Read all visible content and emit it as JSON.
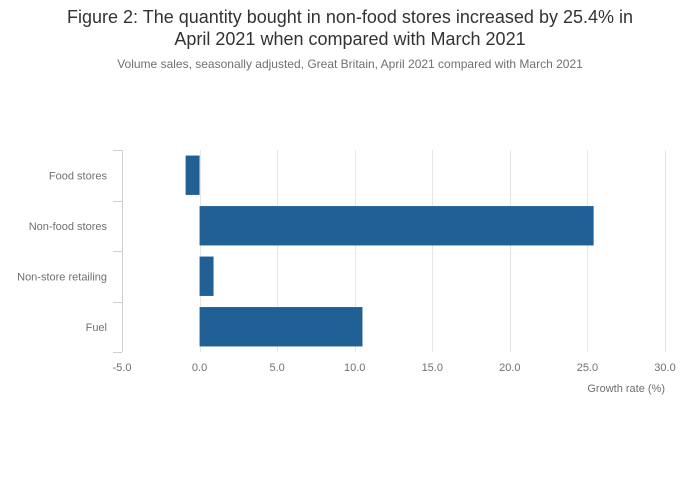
{
  "chart_data": {
    "type": "bar",
    "orientation": "horizontal",
    "title_lines": [
      "Figure 2: The quantity bought in non-food stores increased by 25.4% in",
      "April 2021 when compared with March 2021"
    ],
    "subtitle": "Volume sales, seasonally adjusted, Great Britain, April 2021 compared with March 2021",
    "categories": [
      "Food stores",
      "Non-food stores",
      "Non-store retailing",
      "Fuel"
    ],
    "values": [
      -0.9,
      25.4,
      0.9,
      10.5
    ],
    "xlabel": "Growth rate (%)",
    "ylabel": "",
    "xlim": [
      -5,
      30
    ],
    "xticks": [
      "-5.0",
      "0.0",
      "5.0",
      "10.0",
      "15.0",
      "20.0",
      "25.0",
      "30.0"
    ],
    "xtick_values": [
      -5,
      0,
      5,
      10,
      15,
      20,
      25,
      30
    ],
    "grid": true,
    "legend": false,
    "bar_color": "#206095",
    "grid_color": "#e6e6e6",
    "axis_color": "#d0d0d0"
  }
}
